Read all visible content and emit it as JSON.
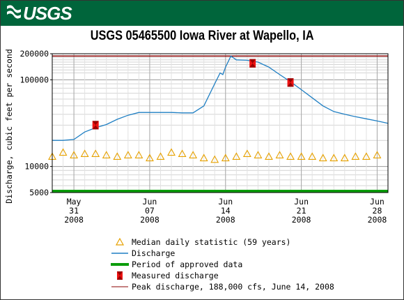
{
  "banner": {
    "logo_text": "USGS",
    "color": "#00653b"
  },
  "chart_data": {
    "type": "line",
    "title": "USGS 05465500 Iowa River at Wapello, IA",
    "ylabel": "Discharge, cubic feet per second",
    "xlabel": "",
    "yscale": "log",
    "ylim": [
      5000,
      200000
    ],
    "yticks": [
      "200000",
      "100000",
      "10000",
      "5000"
    ],
    "xlim": [
      "2008-05-29",
      "2008-06-29"
    ],
    "xticks": [
      {
        "date": "2008-05-31",
        "month": "May",
        "day": "31",
        "year": "2008"
      },
      {
        "date": "2008-06-07",
        "month": "Jun",
        "day": "07",
        "year": "2008"
      },
      {
        "date": "2008-06-14",
        "month": "Jun",
        "day": "14",
        "year": "2008"
      },
      {
        "date": "2008-06-21",
        "month": "Jun",
        "day": "21",
        "year": "2008"
      },
      {
        "date": "2008-06-28",
        "month": "Jun",
        "day": "28",
        "year": "2008"
      }
    ],
    "grid": true,
    "series": [
      {
        "name": "Discharge",
        "color": "#1f7fc3",
        "points": [
          [
            "2008-05-29",
            20000
          ],
          [
            "2008-05-30",
            20000
          ],
          [
            "2008-05-31",
            20500
          ],
          [
            "2008-06-01",
            25000
          ],
          [
            "2008-06-02",
            28000
          ],
          [
            "2008-06-03",
            30500
          ],
          [
            "2008-06-04",
            35000
          ],
          [
            "2008-06-05",
            39000
          ],
          [
            "2008-06-06",
            42000
          ],
          [
            "2008-06-07",
            42000
          ],
          [
            "2008-06-08",
            42000
          ],
          [
            "2008-06-09",
            42000
          ],
          [
            "2008-06-10",
            41500
          ],
          [
            "2008-06-11",
            41500
          ],
          [
            "2008-06-12",
            50000
          ],
          [
            "2008-06-13",
            90000
          ],
          [
            "2008-06-13.5",
            120000
          ],
          [
            "2008-06-13.75",
            115000
          ],
          [
            "2008-06-14",
            140000
          ],
          [
            "2008-06-14.5",
            188000
          ],
          [
            "2008-06-15",
            170000
          ],
          [
            "2008-06-16",
            168000
          ],
          [
            "2008-06-17",
            160000
          ],
          [
            "2008-06-18",
            140000
          ],
          [
            "2008-06-19",
            115000
          ],
          [
            "2008-06-20",
            95000
          ],
          [
            "2008-06-21",
            77000
          ],
          [
            "2008-06-22",
            62000
          ],
          [
            "2008-06-23",
            50000
          ],
          [
            "2008-06-24",
            43000
          ],
          [
            "2008-06-25",
            40000
          ],
          [
            "2008-06-26",
            37500
          ],
          [
            "2008-06-27",
            35500
          ],
          [
            "2008-06-28",
            33500
          ],
          [
            "2008-06-29",
            31500
          ]
        ]
      },
      {
        "name": "Median daily statistic (59 years)",
        "color": "#e6a100",
        "marker": "triangle-open",
        "points": [
          [
            "2008-05-29",
            13000
          ],
          [
            "2008-05-30",
            14500
          ],
          [
            "2008-05-31",
            13500
          ],
          [
            "2008-06-01",
            14000
          ],
          [
            "2008-06-02",
            14000
          ],
          [
            "2008-06-03",
            13500
          ],
          [
            "2008-06-04",
            13000
          ],
          [
            "2008-06-05",
            13500
          ],
          [
            "2008-06-06",
            13500
          ],
          [
            "2008-06-07",
            12500
          ],
          [
            "2008-06-08",
            13000
          ],
          [
            "2008-06-09",
            14500
          ],
          [
            "2008-06-10",
            14000
          ],
          [
            "2008-06-11",
            13500
          ],
          [
            "2008-06-12",
            12500
          ],
          [
            "2008-06-13",
            12000
          ],
          [
            "2008-06-14",
            12500
          ],
          [
            "2008-06-15",
            13000
          ],
          [
            "2008-06-16",
            14000
          ],
          [
            "2008-06-17",
            13500
          ],
          [
            "2008-06-18",
            13000
          ],
          [
            "2008-06-19",
            13500
          ],
          [
            "2008-06-20",
            13000
          ],
          [
            "2008-06-21",
            13000
          ],
          [
            "2008-06-22",
            13000
          ],
          [
            "2008-06-23",
            12500
          ],
          [
            "2008-06-24",
            12500
          ],
          [
            "2008-06-25",
            12500
          ],
          [
            "2008-06-26",
            13000
          ],
          [
            "2008-06-27",
            13000
          ],
          [
            "2008-06-28",
            13500
          ]
        ]
      },
      {
        "name": "Measured discharge",
        "color": "#ee1111",
        "marker": "bowtie",
        "points": [
          [
            "2008-06-02",
            30000
          ],
          [
            "2008-06-16.5",
            155000
          ],
          [
            "2008-06-20",
            93000
          ]
        ]
      }
    ],
    "approved_period": {
      "name": "Period of approved data",
      "color": "#0b9c0b",
      "value": 5000
    },
    "peak": {
      "name": "Peak discharge, 188,000 cfs, June 14, 2008",
      "value": 188000,
      "color": "#8b0000"
    },
    "legend": [
      {
        "label": "Median daily statistic (59 years)",
        "symbol": "triangle"
      },
      {
        "label": "Discharge",
        "symbol": "line-blue"
      },
      {
        "label": "Period of approved data",
        "symbol": "line-green"
      },
      {
        "label": "Measured discharge",
        "symbol": "bowtie"
      },
      {
        "label": "Peak discharge, 188,000 cfs, June 14, 2008",
        "symbol": "line-darkred"
      }
    ]
  }
}
